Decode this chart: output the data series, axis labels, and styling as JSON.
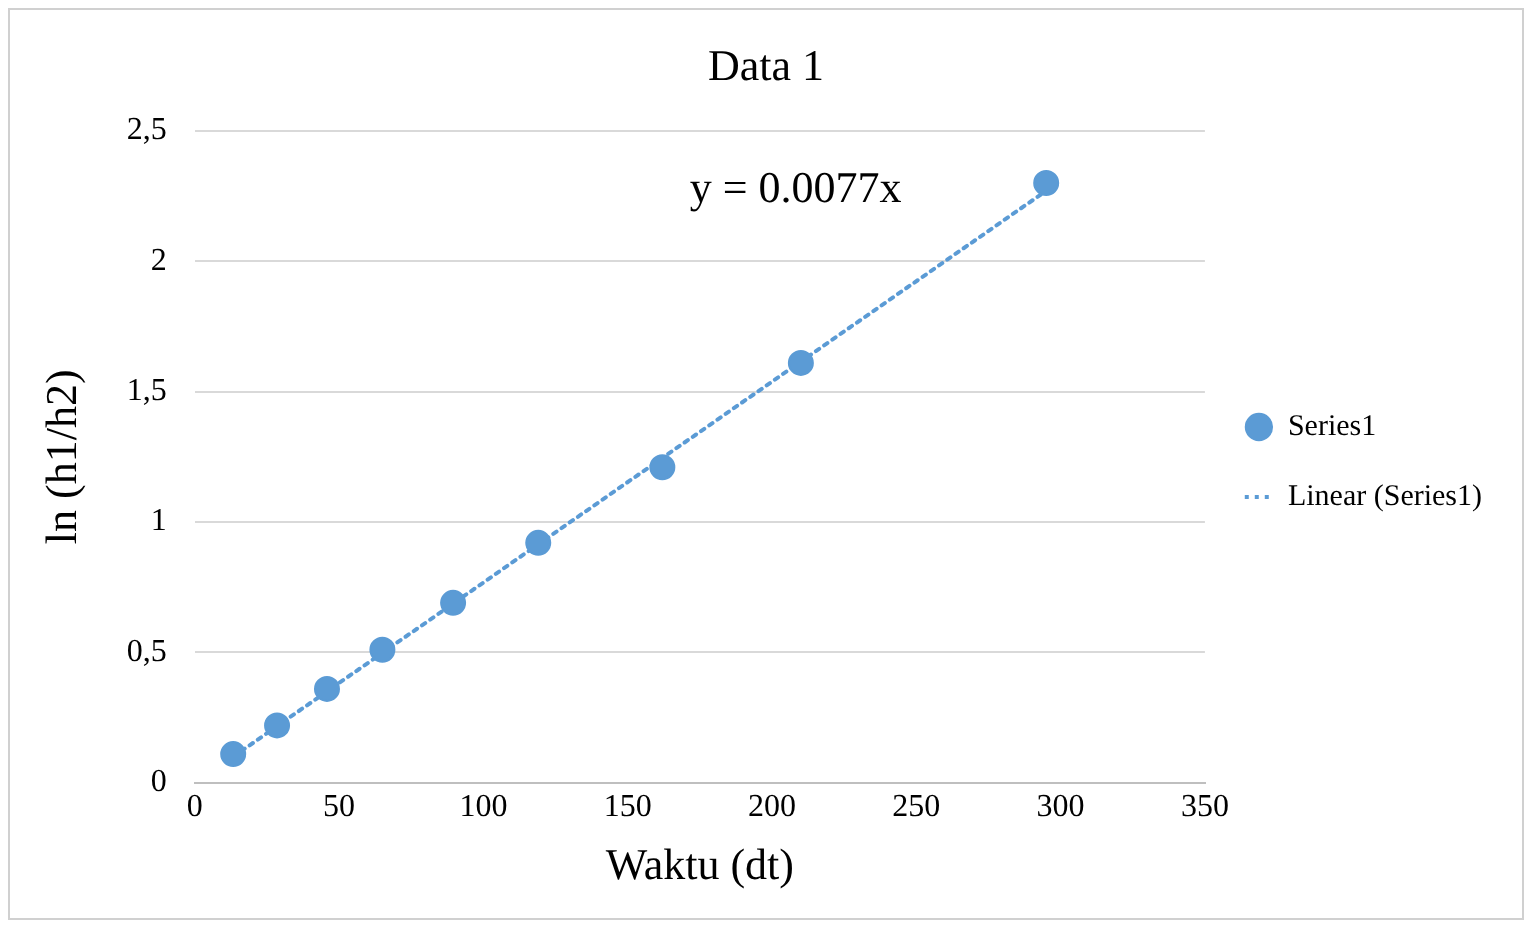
{
  "chart_data": {
    "type": "scatter",
    "title": "Data 1",
    "xlabel": "Waktu (dt)",
    "ylabel": "ln (h1/h2)",
    "annotations": [
      "y = 0.0077x"
    ],
    "series": [
      {
        "name": "Series1",
        "color": "#5b9bd5",
        "marker": "circle",
        "x": [
          13.3,
          28.5,
          45.8,
          65,
          89.5,
          119,
          162,
          210,
          295
        ],
        "values": [
          0.11,
          0.22,
          0.36,
          0.51,
          0.69,
          0.92,
          1.21,
          1.61,
          2.3
        ]
      },
      {
        "name": "Linear (Series1)",
        "type": "line",
        "color": "#5b9bd5",
        "marker": "none",
        "line_style": "dotted",
        "x": [
          13.3,
          295
        ],
        "values": [
          0.1,
          2.27
        ]
      }
    ],
    "xlim": [
      0,
      350
    ],
    "xticks": [
      0,
      50,
      100,
      150,
      200,
      250,
      300,
      350
    ],
    "ylim": [
      0,
      2.5
    ],
    "yticks": [
      0,
      {
        "value": 0.5,
        "label": "0,5"
      },
      1,
      {
        "value": 1.5,
        "label": "1,5"
      },
      2,
      {
        "value": 2.5,
        "label": "2,5"
      }
    ],
    "grid": "y",
    "legend": "right"
  }
}
